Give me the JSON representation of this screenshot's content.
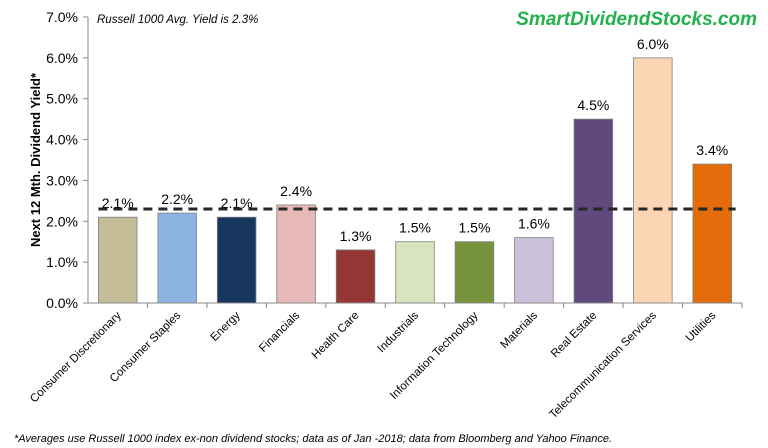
{
  "chart_data": {
    "type": "bar",
    "categories": [
      "Consumer Discretionary",
      "Consumer Staples",
      "Energy",
      "Financials",
      "Health Care",
      "Industrials",
      "Information Technology",
      "Materials",
      "Real Estate",
      "Telecommunication Services",
      "Utilities"
    ],
    "values": [
      2.1,
      2.2,
      2.1,
      2.4,
      1.3,
      1.5,
      1.5,
      1.6,
      4.5,
      6.0,
      3.4
    ],
    "value_labels": [
      "2.1%",
      "2.2%",
      "2.1%",
      "2.4%",
      "1.3%",
      "1.5%",
      "1.5%",
      "1.6%",
      "4.5%",
      "6.0%",
      "3.4%"
    ],
    "colors": [
      "#c4bd97",
      "#8db3e2",
      "#17375e",
      "#e6b9b8",
      "#953735",
      "#d7e4bd",
      "#77933c",
      "#ccc1da",
      "#604a7b",
      "#fcd5b5",
      "#e46c0a"
    ],
    "ylabel": "Next 12 Mth. Dividend Yield*",
    "ylim": [
      0,
      7
    ],
    "yticks": [
      "0.0%",
      "1.0%",
      "2.0%",
      "3.0%",
      "4.0%",
      "5.0%",
      "6.0%",
      "7.0%"
    ],
    "reference_line": {
      "value": 2.3,
      "style": "dashed",
      "color": "#262626"
    },
    "annotation": "Russell 1000 Avg. Yield is 2.3%",
    "grid": false,
    "legend": "none"
  },
  "brand": "SmartDividendStocks.com",
  "footnote": "*Averages use  Russell 1000 index ex-non dividend stocks; data as of Jan -2018; data from Bloomberg and Yahoo Finance."
}
